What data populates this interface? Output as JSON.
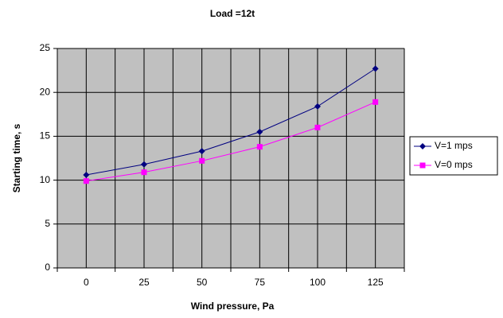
{
  "chart_data": {
    "type": "line",
    "title": "Load =12t",
    "x_label": "Wind pressure, Pa",
    "y_label": "Starting time, s",
    "categories": [
      "0",
      "25",
      "50",
      "75",
      "100",
      "125"
    ],
    "series": [
      {
        "name": "V=1 mps",
        "color": "#000080",
        "marker": "diamond",
        "values": [
          10.6,
          11.8,
          13.3,
          15.5,
          18.4,
          22.7
        ]
      },
      {
        "name": "V=0 mps",
        "color": "#ff00ff",
        "marker": "square",
        "values": [
          9.9,
          10.9,
          12.2,
          13.8,
          16.0,
          18.9
        ]
      }
    ],
    "ylim": [
      0,
      25
    ],
    "yticks": [
      0,
      5,
      10,
      15,
      20,
      25
    ],
    "grid": true,
    "legend": "right"
  }
}
